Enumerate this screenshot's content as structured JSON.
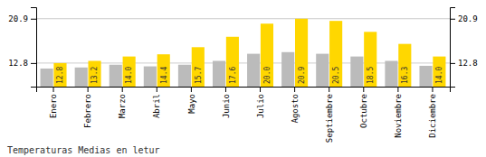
{
  "chart_data": {
    "type": "bar",
    "title": "Temperaturas Medias en letur",
    "categories": [
      "Enero",
      "Febrero",
      "Marzo",
      "Abril",
      "Mayo",
      "Junio",
      "Julio",
      "Agosto",
      "Septiembre",
      "Octubre",
      "Noviembre",
      "Diciembre"
    ],
    "series": [
      {
        "color": "#BBBBBB",
        "values": [
          11.8,
          12.0,
          12.5,
          12.2,
          12.5,
          13.2,
          14.5,
          14.8,
          14.5,
          14.0,
          13.2,
          12.3
        ]
      },
      {
        "color": "#FFD700",
        "data_labels": true,
        "values": [
          12.8,
          13.2,
          14.0,
          14.4,
          15.7,
          17.6,
          20.0,
          20.9,
          20.5,
          18.5,
          16.3,
          14.0
        ],
        "value_labels": [
          "12.8",
          "13.2",
          "14.0",
          "14.4",
          "15.7",
          "17.6",
          "20.0",
          "20.9",
          "20.5",
          "18.5",
          "16.3",
          "14.0"
        ]
      }
    ],
    "ylim": [
      8.5,
      23.0
    ],
    "yticks": [
      12.8,
      20.9
    ],
    "y2lim": [
      8.5,
      23.0
    ],
    "y2ticks": [
      12.8,
      20.9
    ],
    "grid": true
  }
}
